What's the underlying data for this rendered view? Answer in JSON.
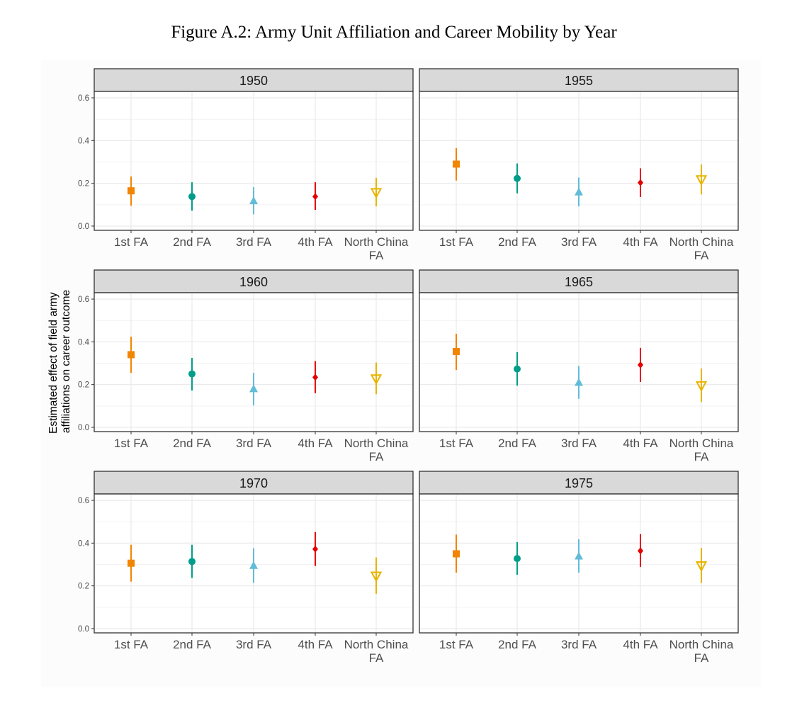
{
  "figure": {
    "title": "Figure A.2: Army Unit Affiliation and Career Mobility by Year"
  },
  "chart_data": {
    "type": "scatter",
    "subtype": "pointrange-facets",
    "ylabel_line1": "Estimated effect of field army",
    "ylabel_line2": "affiliations on career outcome",
    "xlabel": "",
    "ylim": [
      -0.02,
      0.63
    ],
    "yticks": [
      "0.0",
      "0.2",
      "0.4",
      "0.6"
    ],
    "grid": true,
    "legend": "none",
    "categories": [
      {
        "line1": "1st FA",
        "line2": "",
        "color": "#f28500",
        "shape": "square"
      },
      {
        "line1": "2nd FA",
        "line2": "",
        "color": "#009e8a",
        "shape": "circle"
      },
      {
        "line1": "3rd FA",
        "line2": "",
        "color": "#62bcd8",
        "shape": "triangle-up"
      },
      {
        "line1": "4th FA",
        "line2": "",
        "color": "#e60000",
        "shape": "diamond"
      },
      {
        "line1": "North China",
        "line2": "FA",
        "color": "#e8b400",
        "shape": "triangle-down-open"
      }
    ],
    "facets": [
      {
        "label": "1950",
        "estimates": [
          0.165,
          0.138,
          0.119,
          0.138,
          0.158
        ],
        "lower": [
          0.095,
          0.072,
          0.055,
          0.076,
          0.092
        ],
        "upper": [
          0.232,
          0.205,
          0.182,
          0.205,
          0.226
        ]
      },
      {
        "label": "1955",
        "estimates": [
          0.29,
          0.223,
          0.16,
          0.203,
          0.218
        ],
        "lower": [
          0.213,
          0.153,
          0.092,
          0.136,
          0.148
        ],
        "upper": [
          0.365,
          0.293,
          0.227,
          0.27,
          0.288
        ]
      },
      {
        "label": "1960",
        "estimates": [
          0.34,
          0.25,
          0.181,
          0.234,
          0.228
        ],
        "lower": [
          0.255,
          0.172,
          0.103,
          0.16,
          0.155
        ],
        "upper": [
          0.424,
          0.325,
          0.255,
          0.31,
          0.303
        ]
      },
      {
        "label": "1965",
        "estimates": [
          0.355,
          0.273,
          0.211,
          0.292,
          0.196
        ],
        "lower": [
          0.268,
          0.195,
          0.133,
          0.212,
          0.118
        ],
        "upper": [
          0.438,
          0.352,
          0.287,
          0.372,
          0.275
        ]
      },
      {
        "label": "1970",
        "estimates": [
          0.306,
          0.314,
          0.296,
          0.372,
          0.247
        ],
        "lower": [
          0.22,
          0.237,
          0.214,
          0.293,
          0.163
        ],
        "upper": [
          0.392,
          0.392,
          0.376,
          0.452,
          0.333
        ]
      },
      {
        "label": "1975",
        "estimates": [
          0.35,
          0.328,
          0.34,
          0.364,
          0.295
        ],
        "lower": [
          0.262,
          0.252,
          0.262,
          0.288,
          0.213
        ],
        "upper": [
          0.44,
          0.405,
          0.418,
          0.442,
          0.378
        ]
      }
    ]
  }
}
